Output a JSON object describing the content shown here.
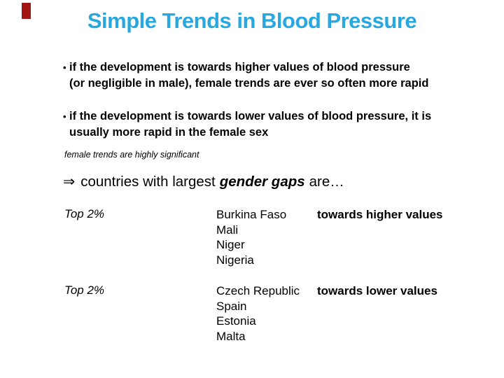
{
  "slide": {
    "colors": {
      "title": "#29A7DF",
      "corner_mark": "#A31515"
    },
    "title": "Simple Trends in Blood Pressure",
    "bullet_glyph": "•",
    "bullets": [
      {
        "lines": [
          "if the development is towards higher values of blood pressure",
          "(or negligible in male), female trends are ever so often more rapid"
        ]
      },
      {
        "lines": [
          "if the development is towards lower values of blood pressure, it is",
          "usually more rapid in the female sex"
        ]
      }
    ],
    "note": "female trends are highly significant",
    "conclusion": {
      "arrow": "⇒",
      "pre": "countries with largest",
      "emphasis": "gender gaps",
      "post": "are…"
    },
    "table": {
      "rows": [
        {
          "label": "Top 2%",
          "countries": [
            "Burkina Faso",
            "Mali",
            "Niger",
            "Nigeria"
          ],
          "direction": "towards higher values"
        },
        {
          "label": "Top 2%",
          "countries": [
            "Czech Republic",
            "Spain",
            "Estonia",
            "Malta"
          ],
          "direction": "towards lower values"
        }
      ]
    }
  }
}
